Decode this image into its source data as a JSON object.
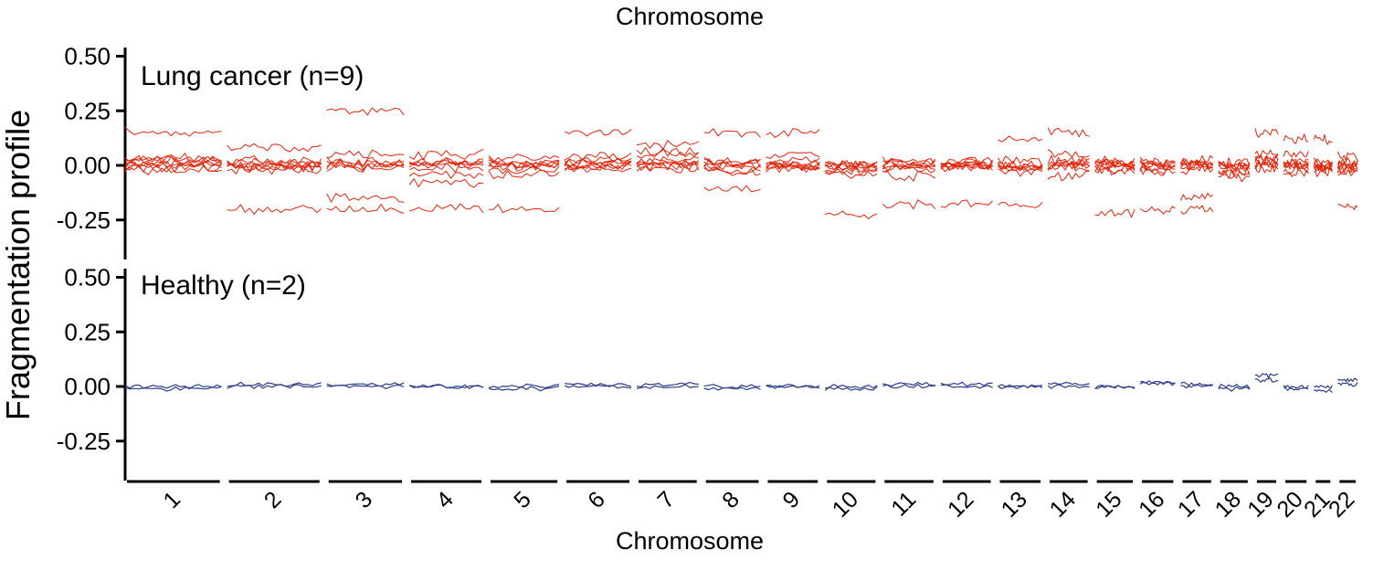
{
  "chart_data": {
    "type": "line",
    "top_xlabel": "Chromosome",
    "xlabel": "Chromosome",
    "ylabel": "Fragmentation profile",
    "chromosomes": [
      "1",
      "2",
      "3",
      "4",
      "5",
      "6",
      "7",
      "8",
      "9",
      "10",
      "11",
      "12",
      "13",
      "14",
      "15",
      "16",
      "17",
      "18",
      "19",
      "20",
      "21",
      "22"
    ],
    "ylim": [
      -0.42,
      0.52
    ],
    "yticks": [
      {
        "value": 0.5,
        "label": "0.50"
      },
      {
        "value": 0.25,
        "label": "0.25"
      },
      {
        "value": 0.0,
        "label": "0.00"
      },
      {
        "value": -0.25,
        "label": "-0.25"
      }
    ],
    "grid": false,
    "panels": [
      {
        "label": "Lung cancer (n=9)",
        "color": "#e3240b",
        "n_samples": 9,
        "sample_offsets": [
          [
            0.15,
            0.03,
            0.0,
            -0.02,
            0.01,
            0.02,
            0.0,
            -0.01,
            0.03
          ],
          [
            0.0,
            -0.2,
            0.02,
            -0.02,
            0.0,
            0.01,
            -0.01,
            0.0,
            0.08
          ],
          [
            0.25,
            -0.2,
            -0.15,
            0.0,
            0.02,
            -0.01,
            0.0,
            0.01,
            0.05
          ],
          [
            0.0,
            -0.2,
            -0.08,
            -0.04,
            0.02,
            0.05,
            -0.01,
            0.0,
            0.01
          ],
          [
            0.0,
            -0.2,
            0.0,
            -0.02,
            0.02,
            -0.04,
            0.01,
            0.0,
            0.03
          ],
          [
            0.15,
            0.0,
            -0.02,
            0.02,
            0.04,
            0.01,
            -0.01,
            0.0,
            0.02
          ],
          [
            0.1,
            0.05,
            0.0,
            -0.02,
            0.02,
            0.01,
            0.0,
            0.06,
            0.0
          ],
          [
            0.15,
            -0.1,
            0.0,
            -0.02,
            0.02,
            0.01,
            -0.03,
            0.0,
            0.01
          ],
          [
            0.15,
            0.0,
            -0.02,
            0.02,
            0.05,
            -0.01,
            0.0,
            0.01,
            0.0
          ],
          [
            -0.22,
            -0.03,
            0.0,
            -0.02,
            0.01,
            -0.04,
            0.0,
            -0.01,
            0.0
          ],
          [
            -0.18,
            -0.05,
            0.0,
            -0.02,
            0.02,
            0.01,
            0.0,
            -0.01,
            0.0
          ],
          [
            -0.18,
            0.0,
            -0.01,
            0.01,
            0.02,
            0.0,
            0.0,
            -0.01,
            0.0
          ],
          [
            0.12,
            -0.18,
            0.0,
            -0.02,
            0.02,
            0.0,
            -0.01,
            0.0,
            -0.03
          ],
          [
            0.15,
            0.05,
            -0.05,
            0.0,
            0.02,
            -0.01,
            0.0,
            0.0,
            0.01
          ],
          [
            -0.22,
            -0.02,
            0.0,
            -0.02,
            0.02,
            0.0,
            0.0,
            -0.01,
            0.01
          ],
          [
            -0.2,
            -0.02,
            0.02,
            -0.03,
            0.0,
            0.01,
            0.0,
            -0.01,
            0.0
          ],
          [
            -0.2,
            -0.15,
            0.0,
            -0.02,
            0.02,
            0.01,
            0.0,
            0.0,
            0.0
          ],
          [
            -0.02,
            -0.05,
            0.0,
            -0.03,
            0.0,
            -0.04,
            0.0,
            0.0,
            0.01
          ],
          [
            0.05,
            0.02,
            0.15,
            -0.02,
            0.0,
            0.04,
            0.01,
            0.03,
            0.0
          ],
          [
            0.12,
            0.0,
            -0.03,
            0.02,
            0.05,
            -0.02,
            0.0,
            0.0,
            0.01
          ],
          [
            0.12,
            -0.03,
            0.0,
            -0.01,
            0.02,
            0.0,
            -0.01,
            0.0,
            -0.02
          ],
          [
            -0.2,
            0.04,
            -0.02,
            0.0,
            0.02,
            -0.03,
            0.0,
            -0.02,
            0.0
          ]
        ]
      },
      {
        "label": "Healthy (n=2)",
        "color": "#2b3e8a",
        "n_samples": 2,
        "sample_offsets": [
          [
            -0.01,
            0.0
          ],
          [
            0.0,
            0.01
          ],
          [
            0.0,
            0.01
          ],
          [
            0.0,
            0.0
          ],
          [
            0.0,
            -0.01
          ],
          [
            0.01,
            0.0
          ],
          [
            0.0,
            0.01
          ],
          [
            -0.01,
            0.0
          ],
          [
            0.0,
            0.0
          ],
          [
            0.0,
            -0.01
          ],
          [
            0.01,
            0.0
          ],
          [
            0.01,
            0.0
          ],
          [
            0.0,
            0.0
          ],
          [
            0.0,
            0.01
          ],
          [
            0.0,
            0.0
          ],
          [
            0.01,
            0.02
          ],
          [
            0.01,
            0.0
          ],
          [
            0.0,
            -0.01
          ],
          [
            0.05,
            0.03
          ],
          [
            -0.01,
            0.0
          ],
          [
            -0.02,
            0.0
          ],
          [
            0.01,
            0.03
          ]
        ]
      }
    ]
  }
}
